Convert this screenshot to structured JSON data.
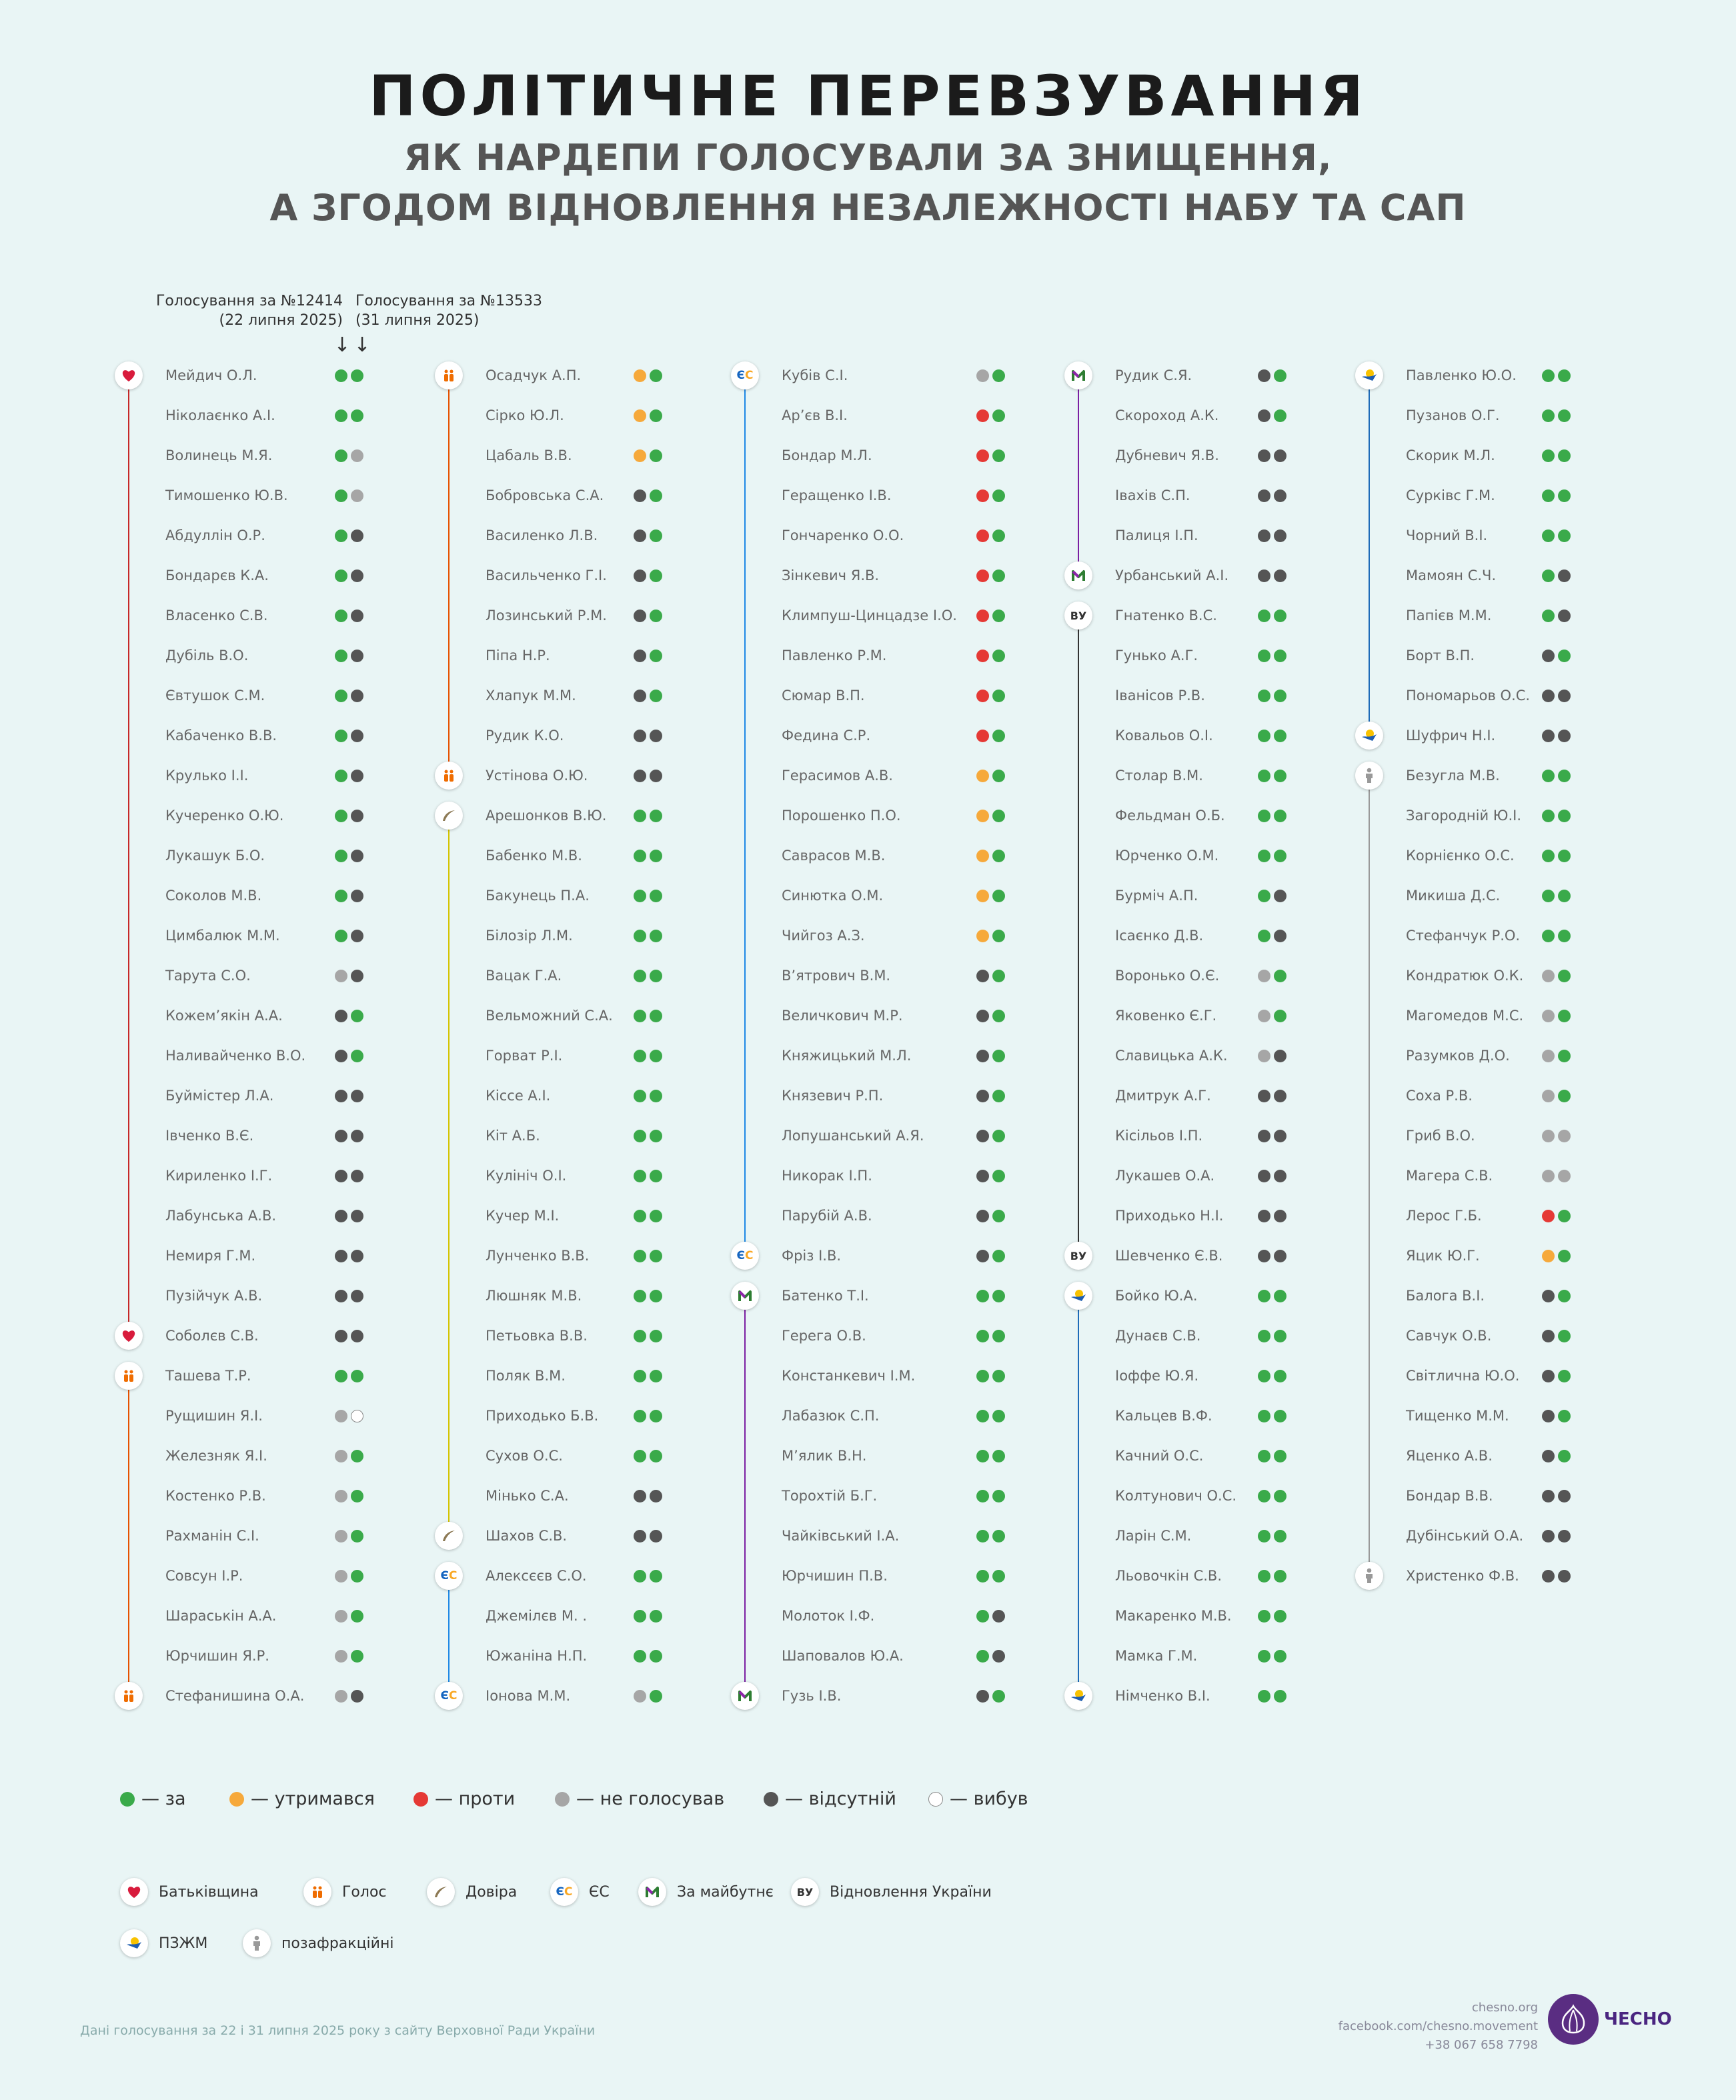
{
  "header": {
    "title": "ПОЛІТИЧНЕ ПЕРЕВЗУВАННЯ",
    "subtitle_line1": "ЯК НАРДЕПИ ГОЛОСУВАЛИ ЗА ЗНИЩЕННЯ,",
    "subtitle_line2": "А ЗГОДОМ ВІДНОВЛЕННЯ НЕЗАЛЕЖНОСТІ НАБУ ТА САП",
    "vote1_title": "Голосування за №12414",
    "vote1_date": "(22 липня 2025)",
    "vote2_title": "Голосування за №13533",
    "vote2_date": "(31 липня 2025)",
    "arrow": "↓"
  },
  "colors": {
    "za": "#3aaa4a",
    "utrymavsia": "#f6a93b",
    "proty": "#e53935",
    "ne_holosuvav": "#a6a6a6",
    "vidsutnii": "#555555",
    "vybuv": "#ffffff",
    "line_batk": "#c62828",
    "line_holos": "#e65100",
    "line_dovira": "#d4c400",
    "line_es": "#1e88e5",
    "line_mayb": "#7b1fa2",
    "line_vu": "#333333",
    "line_pzzhm": "#1e6bb8",
    "line_poza": "#999999"
  },
  "legend": {
    "za": "— за",
    "utrymavsia": "— утримався",
    "proty": "— проти",
    "ne_holosuvav": "— не голосував",
    "vidsutnii": "— відсутній",
    "vybuv": "— вибув"
  },
  "factions": {
    "batk": "Батьківщина",
    "holos": "Голос",
    "dovira": "Довіра",
    "es": "ЄС",
    "mayb": "За майбутнє",
    "vu": "Відновлення України",
    "pzzhm": "ПЗЖМ",
    "poza": "позафракційні"
  },
  "badge_labels": {
    "es": "ЄС",
    "vu": "ВУ"
  },
  "footer": {
    "note": "Дані голосування за 22 і 31 липня 2025 року з сайту Верховної Ради України",
    "site": "chesno.org",
    "facebook": "facebook.com/chesno.movement",
    "phone": "+38 067 658 7798",
    "logo_text": "ЧЕСНО"
  },
  "columns": [
    {
      "groups": [
        {
          "faction": "batk",
          "rows": [
            [
              "Мейдич О.Л.",
              "za",
              "za"
            ],
            [
              "Ніколаєнко А.І.",
              "za",
              "za"
            ],
            [
              "Волинець М.Я.",
              "za",
              "ne"
            ],
            [
              "Тимошенко Ю.В.",
              "za",
              "ne"
            ],
            [
              "Абдуллін О.Р.",
              "za",
              "vi"
            ],
            [
              "Бондарєв К.А.",
              "za",
              "vi"
            ],
            [
              "Власенко С.В.",
              "za",
              "vi"
            ],
            [
              "Дубіль В.О.",
              "za",
              "vi"
            ],
            [
              "Євтушок С.М.",
              "za",
              "vi"
            ],
            [
              "Кабаченко В.В.",
              "za",
              "vi"
            ],
            [
              "Крулько І.І.",
              "za",
              "vi"
            ],
            [
              "Кучеренко О.Ю.",
              "za",
              "vi"
            ],
            [
              "Лукашук Б.О.",
              "za",
              "vi"
            ],
            [
              "Соколов М.В.",
              "za",
              "vi"
            ],
            [
              "Цимбалюк М.М.",
              "za",
              "vi"
            ],
            [
              "Тарута С.О.",
              "ne",
              "vi"
            ],
            [
              "Кожем’якін А.А.",
              "vi",
              "za"
            ],
            [
              "Наливайченко В.О.",
              "vi",
              "za"
            ],
            [
              "Буймістер Л.А.",
              "vi",
              "vi"
            ],
            [
              "Івченко В.Є.",
              "vi",
              "vi"
            ],
            [
              "Кириленко І.Г.",
              "vi",
              "vi"
            ],
            [
              "Лабунська А.В.",
              "vi",
              "vi"
            ],
            [
              "Немиря Г.М.",
              "vi",
              "vi"
            ],
            [
              "Пузійчук А.В.",
              "vi",
              "vi"
            ],
            [
              "Соболєв С.В.",
              "vi",
              "vi"
            ]
          ]
        },
        {
          "faction": "holos",
          "rows": [
            [
              "Ташева Т.Р.",
              "za",
              "za"
            ],
            [
              "Рущишин Я.І.",
              "ne",
              "vy"
            ],
            [
              "Железняк Я.І.",
              "ne",
              "za"
            ],
            [
              "Костенко Р.В.",
              "ne",
              "za"
            ],
            [
              "Рахманін С.І.",
              "ne",
              "za"
            ],
            [
              "Совсун І.Р.",
              "ne",
              "za"
            ],
            [
              "Шараськін А.А.",
              "ne",
              "za"
            ],
            [
              "Юрчишин Я.Р.",
              "ne",
              "za"
            ],
            [
              "Стефанишина О.А.",
              "ne",
              "vi"
            ]
          ]
        }
      ]
    },
    {
      "groups": [
        {
          "faction": "holos",
          "rows": [
            [
              "Осадчук А.П.",
              "ut",
              "za"
            ],
            [
              "Сірко Ю.Л.",
              "ut",
              "za"
            ],
            [
              "Цабаль В.В.",
              "ut",
              "za"
            ],
            [
              "Бобровська С.А.",
              "vi",
              "za"
            ],
            [
              "Василенко Л.В.",
              "vi",
              "za"
            ],
            [
              "Васильченко Г.І.",
              "vi",
              "za"
            ],
            [
              "Лозинський Р.М.",
              "vi",
              "za"
            ],
            [
              "Піпа Н.Р.",
              "vi",
              "za"
            ],
            [
              "Хлапук М.М.",
              "vi",
              "za"
            ],
            [
              "Рудик К.О.",
              "vi",
              "vi"
            ],
            [
              "Устінова О.Ю.",
              "vi",
              "vi"
            ]
          ]
        },
        {
          "faction": "dovira",
          "rows": [
            [
              "Арешонков В.Ю.",
              "za",
              "za"
            ],
            [
              "Бабенко М.В.",
              "za",
              "za"
            ],
            [
              "Бакунець П.А.",
              "za",
              "za"
            ],
            [
              "Білозір Л.М.",
              "za",
              "za"
            ],
            [
              "Вацак Г.А.",
              "za",
              "za"
            ],
            [
              "Вельможний С.А.",
              "za",
              "za"
            ],
            [
              "Горват Р.І.",
              "za",
              "za"
            ],
            [
              "Кіссе А.І.",
              "za",
              "za"
            ],
            [
              "Кіт А.Б.",
              "za",
              "za"
            ],
            [
              "Кулініч О.І.",
              "za",
              "za"
            ],
            [
              "Кучер М.І.",
              "za",
              "za"
            ],
            [
              "Лунченко В.В.",
              "za",
              "za"
            ],
            [
              "Люшняк М.В.",
              "za",
              "za"
            ],
            [
              "Петьовка В.В.",
              "za",
              "za"
            ],
            [
              "Поляк В.М.",
              "za",
              "za"
            ],
            [
              "Приходько Б.В.",
              "za",
              "za"
            ],
            [
              "Сухов О.С.",
              "za",
              "za"
            ],
            [
              "Мінько С.А.",
              "vi",
              "vi"
            ],
            [
              "Шахов С.В.",
              "vi",
              "vi"
            ]
          ]
        },
        {
          "faction": "es",
          "rows": [
            [
              "Алексєєв С.О.",
              "za",
              "za"
            ],
            [
              "Джемілєв М. .",
              "za",
              "za"
            ],
            [
              "Южаніна Н.П.",
              "za",
              "za"
            ],
            [
              "Іонова М.М.",
              "ne",
              "za"
            ]
          ]
        }
      ]
    },
    {
      "groups": [
        {
          "faction": "es",
          "rows": [
            [
              "Кубів С.І.",
              "ne",
              "za"
            ],
            [
              "Ар’єв В.І.",
              "pr",
              "za"
            ],
            [
              "Бондар М.Л.",
              "pr",
              "za"
            ],
            [
              "Геращенко І.В.",
              "pr",
              "za"
            ],
            [
              "Гончаренко О.О.",
              "pr",
              "za"
            ],
            [
              "Зінкевич Я.В.",
              "pr",
              "za"
            ],
            [
              "Климпуш-Цинцадзе І.О.",
              "pr",
              "za"
            ],
            [
              "Павленко Р.М.",
              "pr",
              "za"
            ],
            [
              "Сюмар В.П.",
              "pr",
              "za"
            ],
            [
              "Федина С.Р.",
              "pr",
              "za"
            ],
            [
              "Герасимов А.В.",
              "ut",
              "za"
            ],
            [
              "Порошенко П.О.",
              "ut",
              "za"
            ],
            [
              "Саврасов М.В.",
              "ut",
              "za"
            ],
            [
              "Синютка О.М.",
              "ut",
              "za"
            ],
            [
              "Чийгоз А.З.",
              "ut",
              "za"
            ],
            [
              "В’ятрович В.М.",
              "vi",
              "za"
            ],
            [
              "Величкович М.Р.",
              "vi",
              "za"
            ],
            [
              "Княжицький М.Л.",
              "vi",
              "za"
            ],
            [
              "Князевич Р.П.",
              "vi",
              "za"
            ],
            [
              "Лопушанський А.Я.",
              "vi",
              "za"
            ],
            [
              "Никорак І.П.",
              "vi",
              "za"
            ],
            [
              "Парубій А.В.",
              "vi",
              "za"
            ],
            [
              "Фріз І.В.",
              "vi",
              "za"
            ]
          ]
        },
        {
          "faction": "mayb",
          "rows": [
            [
              "Батенко Т.І.",
              "za",
              "za"
            ],
            [
              "Герега О.В.",
              "za",
              "za"
            ],
            [
              "Констанкевич І.М.",
              "za",
              "za"
            ],
            [
              "Лабазюк С.П.",
              "za",
              "za"
            ],
            [
              "М’ялик В.Н.",
              "za",
              "za"
            ],
            [
              "Торохтій Б.Г.",
              "za",
              "za"
            ],
            [
              "Чайківський І.А.",
              "za",
              "za"
            ],
            [
              "Юрчишин П.В.",
              "za",
              "za"
            ],
            [
              "Молоток І.Ф.",
              "za",
              "vi"
            ],
            [
              "Шаповалов Ю.А.",
              "za",
              "vi"
            ],
            [
              "Гузь І.В.",
              "vi",
              "za"
            ]
          ]
        }
      ]
    },
    {
      "groups": [
        {
          "faction": "mayb",
          "rows": [
            [
              "Рудик С.Я.",
              "vi",
              "za"
            ],
            [
              "Скороход А.К.",
              "vi",
              "za"
            ],
            [
              "Дубневич Я.В.",
              "vi",
              "vi"
            ],
            [
              "Івахів С.П.",
              "vi",
              "vi"
            ],
            [
              "Палиця І.П.",
              "vi",
              "vi"
            ],
            [
              "Урбанський А.І.",
              "vi",
              "vi"
            ]
          ]
        },
        {
          "faction": "vu",
          "rows": [
            [
              "Гнатенко В.С.",
              "za",
              "za"
            ],
            [
              "Гунько А.Г.",
              "za",
              "za"
            ],
            [
              "Іванісов Р.В.",
              "za",
              "za"
            ],
            [
              "Ковальов О.І.",
              "za",
              "za"
            ],
            [
              "Столар В.М.",
              "za",
              "za"
            ],
            [
              "Фельдман О.Б.",
              "za",
              "za"
            ],
            [
              "Юрченко О.М.",
              "za",
              "za"
            ],
            [
              "Бурміч А.П.",
              "za",
              "vi"
            ],
            [
              "Ісаєнко Д.В.",
              "za",
              "vi"
            ],
            [
              "Воронько О.Є.",
              "ne",
              "za"
            ],
            [
              "Яковенко Є.Г.",
              "ne",
              "za"
            ],
            [
              "Славицька А.К.",
              "ne",
              "vi"
            ],
            [
              "Дмитрук А.Г.",
              "vi",
              "vi"
            ],
            [
              "Кісільов І.П.",
              "vi",
              "vi"
            ],
            [
              "Лукашев О.А.",
              "vi",
              "vi"
            ],
            [
              "Приходько Н.І.",
              "vi",
              "vi"
            ],
            [
              "Шевченко Є.В.",
              "vi",
              "vi"
            ]
          ]
        },
        {
          "faction": "pzzhm",
          "rows": [
            [
              "Бойко Ю.А.",
              "za",
              "za"
            ],
            [
              "Дунаєв С.В.",
              "za",
              "za"
            ],
            [
              "Іоффе Ю.Я.",
              "za",
              "za"
            ],
            [
              "Кальцев В.Ф.",
              "za",
              "za"
            ],
            [
              "Качний О.С.",
              "za",
              "za"
            ],
            [
              "Колтунович О.С.",
              "za",
              "za"
            ],
            [
              "Ларін С.М.",
              "za",
              "za"
            ],
            [
              "Льовочкін С.В.",
              "za",
              "za"
            ],
            [
              "Макаренко М.В.",
              "za",
              "za"
            ],
            [
              "Мамка Г.М.",
              "za",
              "za"
            ],
            [
              "Німченко В.І.",
              "za",
              "za"
            ]
          ]
        }
      ]
    },
    {
      "groups": [
        {
          "faction": "pzzhm",
          "rows": [
            [
              "Павленко Ю.О.",
              "za",
              "za"
            ],
            [
              "Пузанов О.Г.",
              "za",
              "za"
            ],
            [
              "Скорик М.Л.",
              "za",
              "za"
            ],
            [
              "Сурківс Г.М.",
              "za",
              "za"
            ],
            [
              "Чорний В.І.",
              "za",
              "za"
            ],
            [
              "Мамоян С.Ч.",
              "za",
              "vi"
            ],
            [
              "Папієв М.М.",
              "za",
              "vi"
            ],
            [
              "Борт В.П.",
              "vi",
              "za"
            ],
            [
              "Пономарьов О.С.",
              "vi",
              "vi"
            ],
            [
              "Шуфрич Н.І.",
              "vi",
              "vi"
            ]
          ]
        },
        {
          "faction": "poza",
          "rows": [
            [
              "Безугла М.В.",
              "za",
              "za"
            ],
            [
              "Загородній Ю.І.",
              "za",
              "za"
            ],
            [
              "Корнієнко О.С.",
              "za",
              "za"
            ],
            [
              "Микиша Д.С.",
              "za",
              "za"
            ],
            [
              "Стефанчук Р.О.",
              "za",
              "za"
            ],
            [
              "Кондратюк О.К.",
              "ne",
              "za"
            ],
            [
              "Магомедов М.С.",
              "ne",
              "za"
            ],
            [
              "Разумков Д.О.",
              "ne",
              "za"
            ],
            [
              "Соха Р.В.",
              "ne",
              "za"
            ],
            [
              "Гриб В.О.",
              "ne",
              "ne"
            ],
            [
              "Магера С.В.",
              "ne",
              "ne"
            ],
            [
              "Лерос Г.Б.",
              "pr",
              "za"
            ],
            [
              "Яцик Ю.Г.",
              "ut",
              "za"
            ],
            [
              "Балога В.І.",
              "vi",
              "za"
            ],
            [
              "Савчук О.В.",
              "vi",
              "za"
            ],
            [
              "Світлична Ю.О.",
              "vi",
              "za"
            ],
            [
              "Тищенко М.М.",
              "vi",
              "za"
            ],
            [
              "Яценко А.В.",
              "vi",
              "za"
            ],
            [
              "Бондар В.В.",
              "vi",
              "vi"
            ],
            [
              "Дубінський О.А.",
              "vi",
              "vi"
            ],
            [
              "Христенко Ф.В.",
              "vi",
              "vi"
            ]
          ]
        }
      ]
    }
  ]
}
